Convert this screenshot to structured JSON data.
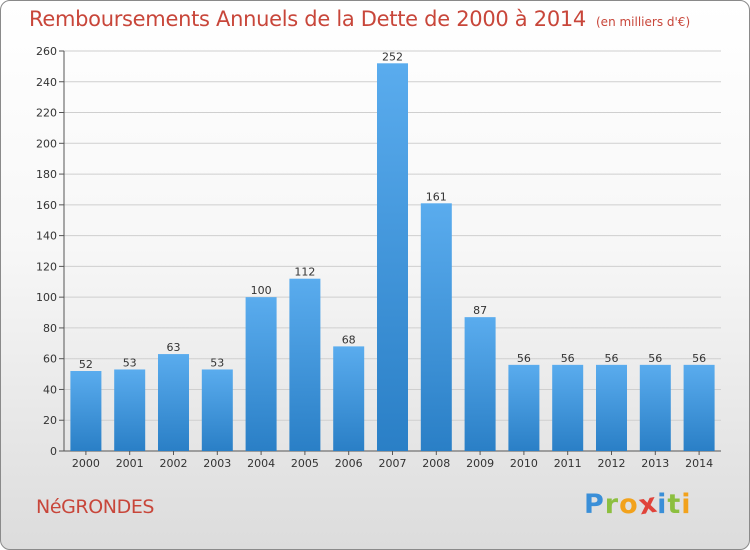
{
  "title": "Remboursements Annuels de la Dette de 2000 à 2014",
  "unit": "(en milliers d'€)",
  "footer_city": "NéGRONDES",
  "logo": {
    "letters": [
      {
        "ch": "P",
        "color": "#3a8fd8"
      },
      {
        "ch": "r",
        "color": "#8cbf3f"
      },
      {
        "ch": "o",
        "color": "#f2a21c"
      },
      {
        "ch": "x",
        "color": "#e0433a"
      },
      {
        "ch": "i",
        "color": "#3a8fd8"
      },
      {
        "ch": "t",
        "color": "#8cbf3f"
      },
      {
        "ch": "i",
        "color": "#f2a21c"
      }
    ]
  },
  "colors": {
    "title": "#c8463a",
    "bar_top": "#5aacee",
    "bar_bottom": "#2a7fc6",
    "grid": "#cfcfcf"
  },
  "chart_data": {
    "type": "bar",
    "categories": [
      "2000",
      "2001",
      "2002",
      "2003",
      "2004",
      "2005",
      "2006",
      "2007",
      "2008",
      "2009",
      "2010",
      "2011",
      "2012",
      "2013",
      "2014"
    ],
    "values": [
      52,
      53,
      63,
      53,
      100,
      112,
      68,
      252,
      161,
      87,
      56,
      56,
      56,
      56,
      56
    ],
    "title": "Remboursements Annuels de la Dette de 2000 à 2014",
    "ylim": [
      0,
      260
    ],
    "yticks": [
      0,
      20,
      40,
      60,
      80,
      100,
      120,
      140,
      160,
      180,
      200,
      220,
      240,
      260
    ],
    "grid": true,
    "data_labels": true
  }
}
